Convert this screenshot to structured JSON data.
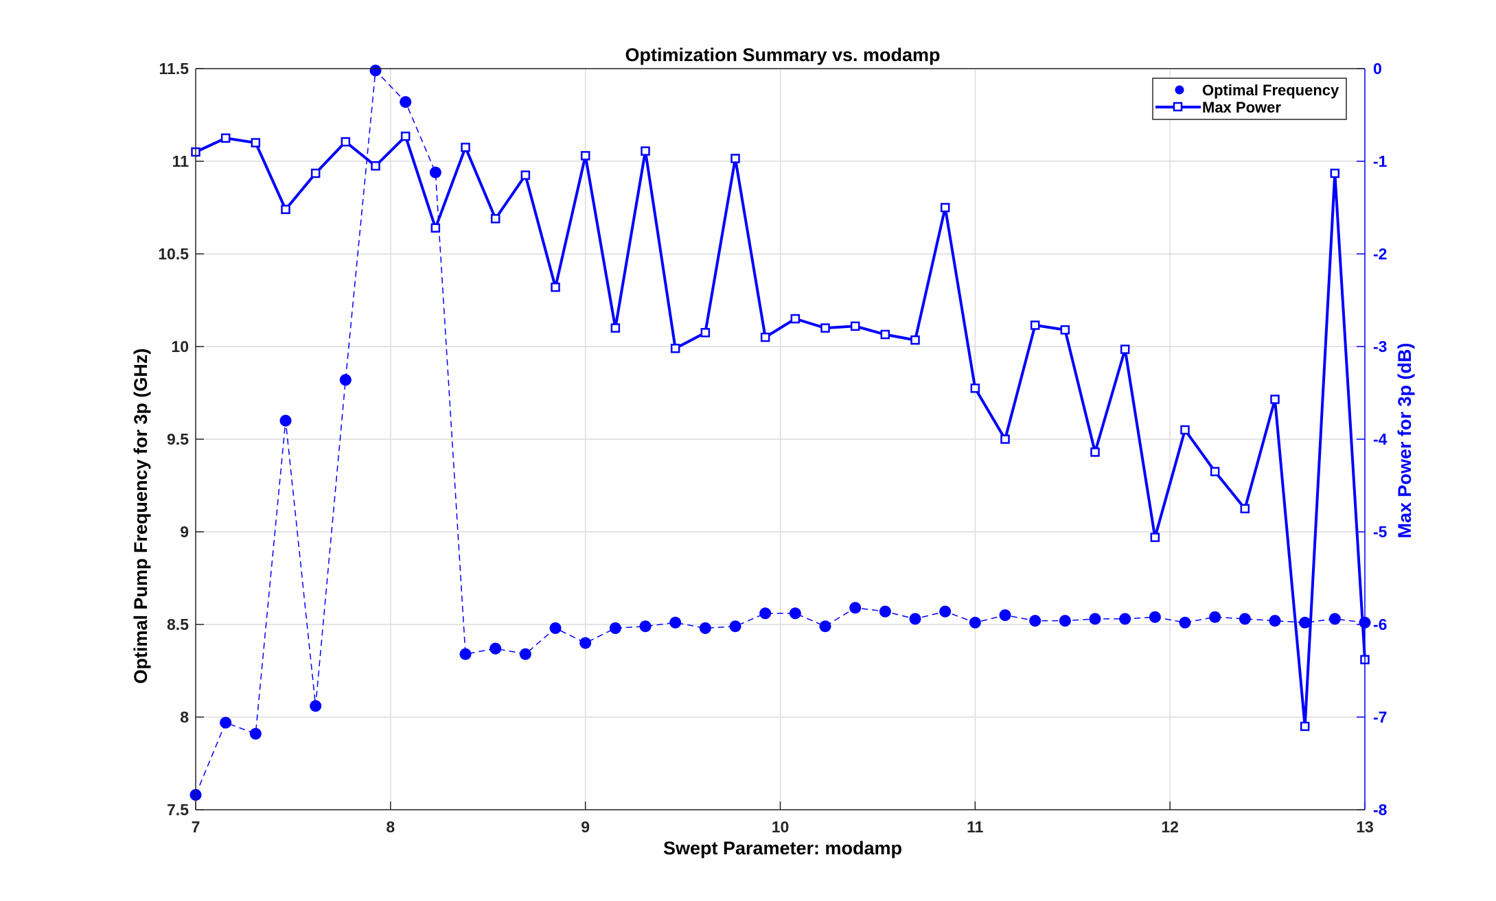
{
  "chart_data": {
    "type": "line",
    "title": "Optimization Summary vs. modamp",
    "xlabel": "Swept Parameter: modamp",
    "ylabel_left": "Optimal Pump Frequency for 3p (GHz)",
    "ylabel_right": "Max Power for 3p (dB)",
    "xlim": [
      7,
      13
    ],
    "ylim_left": [
      7.5,
      11.5
    ],
    "ylim_right": [
      -8,
      0
    ],
    "x_ticks": [
      "7",
      "8",
      "9",
      "10",
      "11",
      "12",
      "13"
    ],
    "y_ticks_left": [
      "7.5",
      "8",
      "8.5",
      "9",
      "9.5",
      "10",
      "10.5",
      "11",
      "11.5"
    ],
    "y_ticks_right": [
      "-8",
      "-7",
      "-6",
      "-5",
      "-4",
      "-3",
      "-2",
      "-1",
      "0"
    ],
    "grid": true,
    "legend_position": "top-right",
    "x": [
      7.0,
      7.153846,
      7.307692,
      7.461538,
      7.615385,
      7.769231,
      7.923077,
      8.076923,
      8.230769,
      8.384615,
      8.538462,
      8.692308,
      8.846154,
      9.0,
      9.153846,
      9.307692,
      9.461538,
      9.615385,
      9.769231,
      9.923077,
      10.076923,
      10.230769,
      10.384615,
      10.538462,
      10.692308,
      10.846154,
      11.0,
      11.153846,
      11.307692,
      11.461538,
      11.615385,
      11.769231,
      11.923077,
      12.076923,
      12.230769,
      12.384615,
      12.538462,
      12.692308,
      12.846154,
      13.0
    ],
    "series": [
      {
        "name": "Optimal Frequency",
        "axis": "left",
        "color": "#0000ff",
        "style": "filled-circle-dashed",
        "values": [
          7.58,
          7.97,
          7.91,
          9.6,
          8.06,
          9.82,
          11.49,
          11.32,
          10.94,
          8.34,
          8.37,
          8.34,
          8.48,
          8.4,
          8.48,
          8.49,
          8.51,
          8.48,
          8.49,
          8.56,
          8.56,
          8.49,
          8.59,
          8.57,
          8.53,
          8.57,
          8.51,
          8.55,
          8.52,
          8.52,
          8.53,
          8.53,
          8.54,
          8.51,
          8.54,
          8.53,
          8.52,
          8.51,
          8.53,
          8.51
        ]
      },
      {
        "name": "Max Power",
        "axis": "right",
        "color": "#0000ff",
        "style": "open-square-solid",
        "values": [
          -0.9,
          -0.75,
          -0.8,
          -1.52,
          -1.13,
          -0.79,
          -1.05,
          -0.73,
          -1.72,
          -0.85,
          -1.62,
          -1.15,
          -2.36,
          -0.94,
          -2.8,
          -0.89,
          -3.02,
          -2.85,
          -0.97,
          -2.9,
          -2.7,
          -2.8,
          -2.78,
          -2.87,
          -2.93,
          -1.5,
          -3.45,
          -4.0,
          -2.77,
          -2.82,
          -4.14,
          -3.03,
          -5.06,
          -3.9,
          -4.35,
          -4.75,
          -3.57,
          -7.1,
          -1.13,
          -6.38
        ]
      }
    ]
  }
}
